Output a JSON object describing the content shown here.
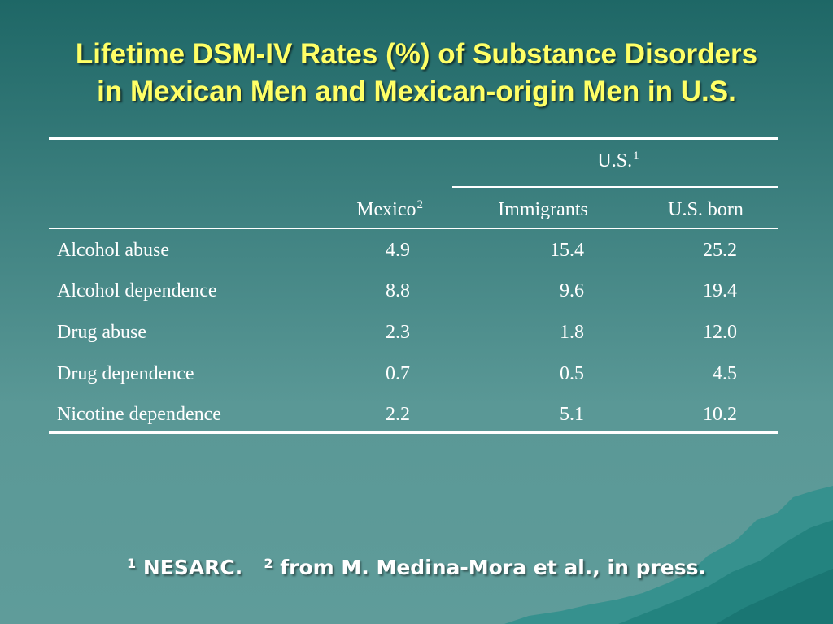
{
  "title": {
    "line1": "Lifetime DSM-IV Rates (%) of Substance Disorders",
    "line2": "in Mexican Men and Mexican-origin Men in U.S."
  },
  "table": {
    "group_header": {
      "label": "U.S.",
      "sup": "1"
    },
    "columns": [
      {
        "label": "Mexico",
        "sup": "2"
      },
      {
        "label": "Immigrants",
        "sup": ""
      },
      {
        "label": "U.S. born",
        "sup": ""
      }
    ],
    "rows": [
      {
        "label": "Alcohol abuse",
        "values": [
          "4.9",
          "15.4",
          "25.2"
        ]
      },
      {
        "label": "Alcohol dependence",
        "values": [
          "8.8",
          "9.6",
          "19.4"
        ]
      },
      {
        "label": "Drug abuse",
        "values": [
          "2.3",
          "1.8",
          "12.0"
        ]
      },
      {
        "label": "Drug dependence",
        "values": [
          "0.7",
          "0.5",
          "4.5"
        ]
      },
      {
        "label": "Nicotine dependence",
        "values": [
          "2.2",
          "5.1",
          "10.2"
        ]
      }
    ]
  },
  "footnote": {
    "mark1": "1",
    "text1": "NESARC.",
    "mark2": "2",
    "text2": "from M. Medina-Mora et al., in press."
  },
  "colors": {
    "title": "#ffff66",
    "text": "#ffffff",
    "background_top": "#1e6766",
    "background_bottom": "#5f9c9a"
  }
}
